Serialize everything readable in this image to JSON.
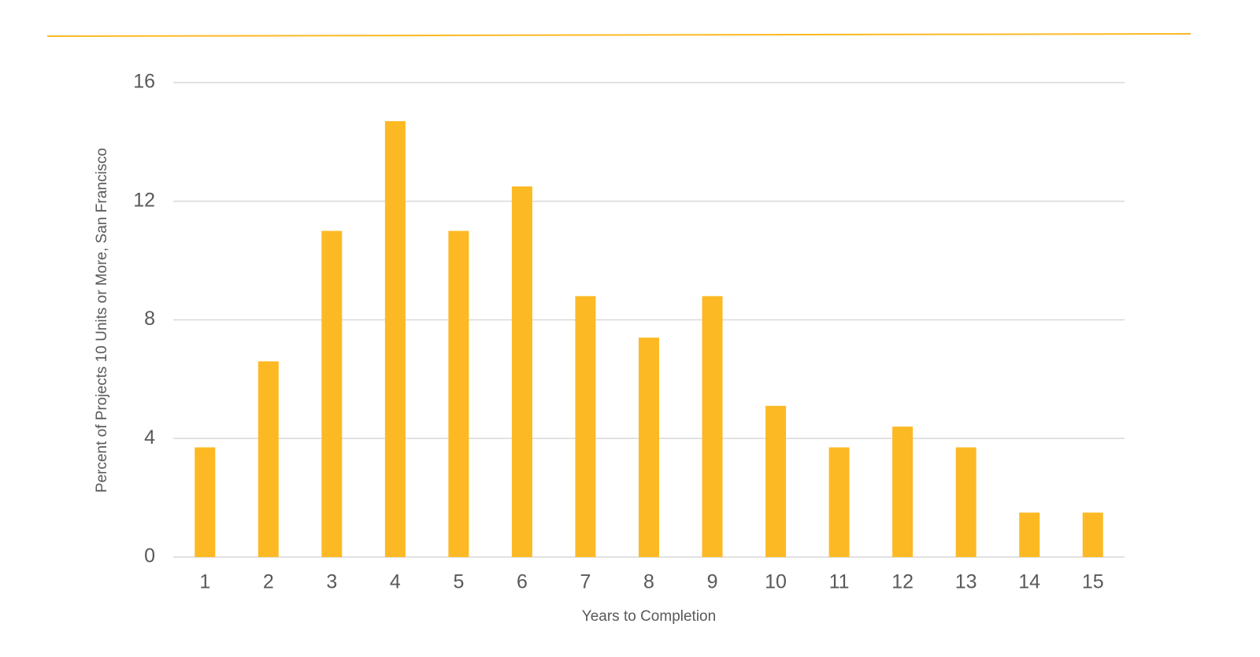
{
  "chart_data": {
    "type": "bar",
    "x_label": "Years to Completion",
    "y_label": "Percent of Projects 10 Units or More, San Francisco",
    "categories": [
      "1",
      "2",
      "3",
      "4",
      "5",
      "6",
      "7",
      "8",
      "9",
      "10",
      "11",
      "12",
      "13",
      "14",
      "15"
    ],
    "values": [
      3.7,
      6.6,
      11.0,
      14.7,
      11.0,
      12.5,
      8.8,
      7.4,
      8.8,
      5.1,
      3.7,
      4.4,
      3.7,
      1.5,
      1.5
    ],
    "color": "#fdb924",
    "ylim": [
      0,
      16
    ],
    "yticks": [
      0,
      4,
      8,
      12,
      16
    ],
    "grid": true
  }
}
